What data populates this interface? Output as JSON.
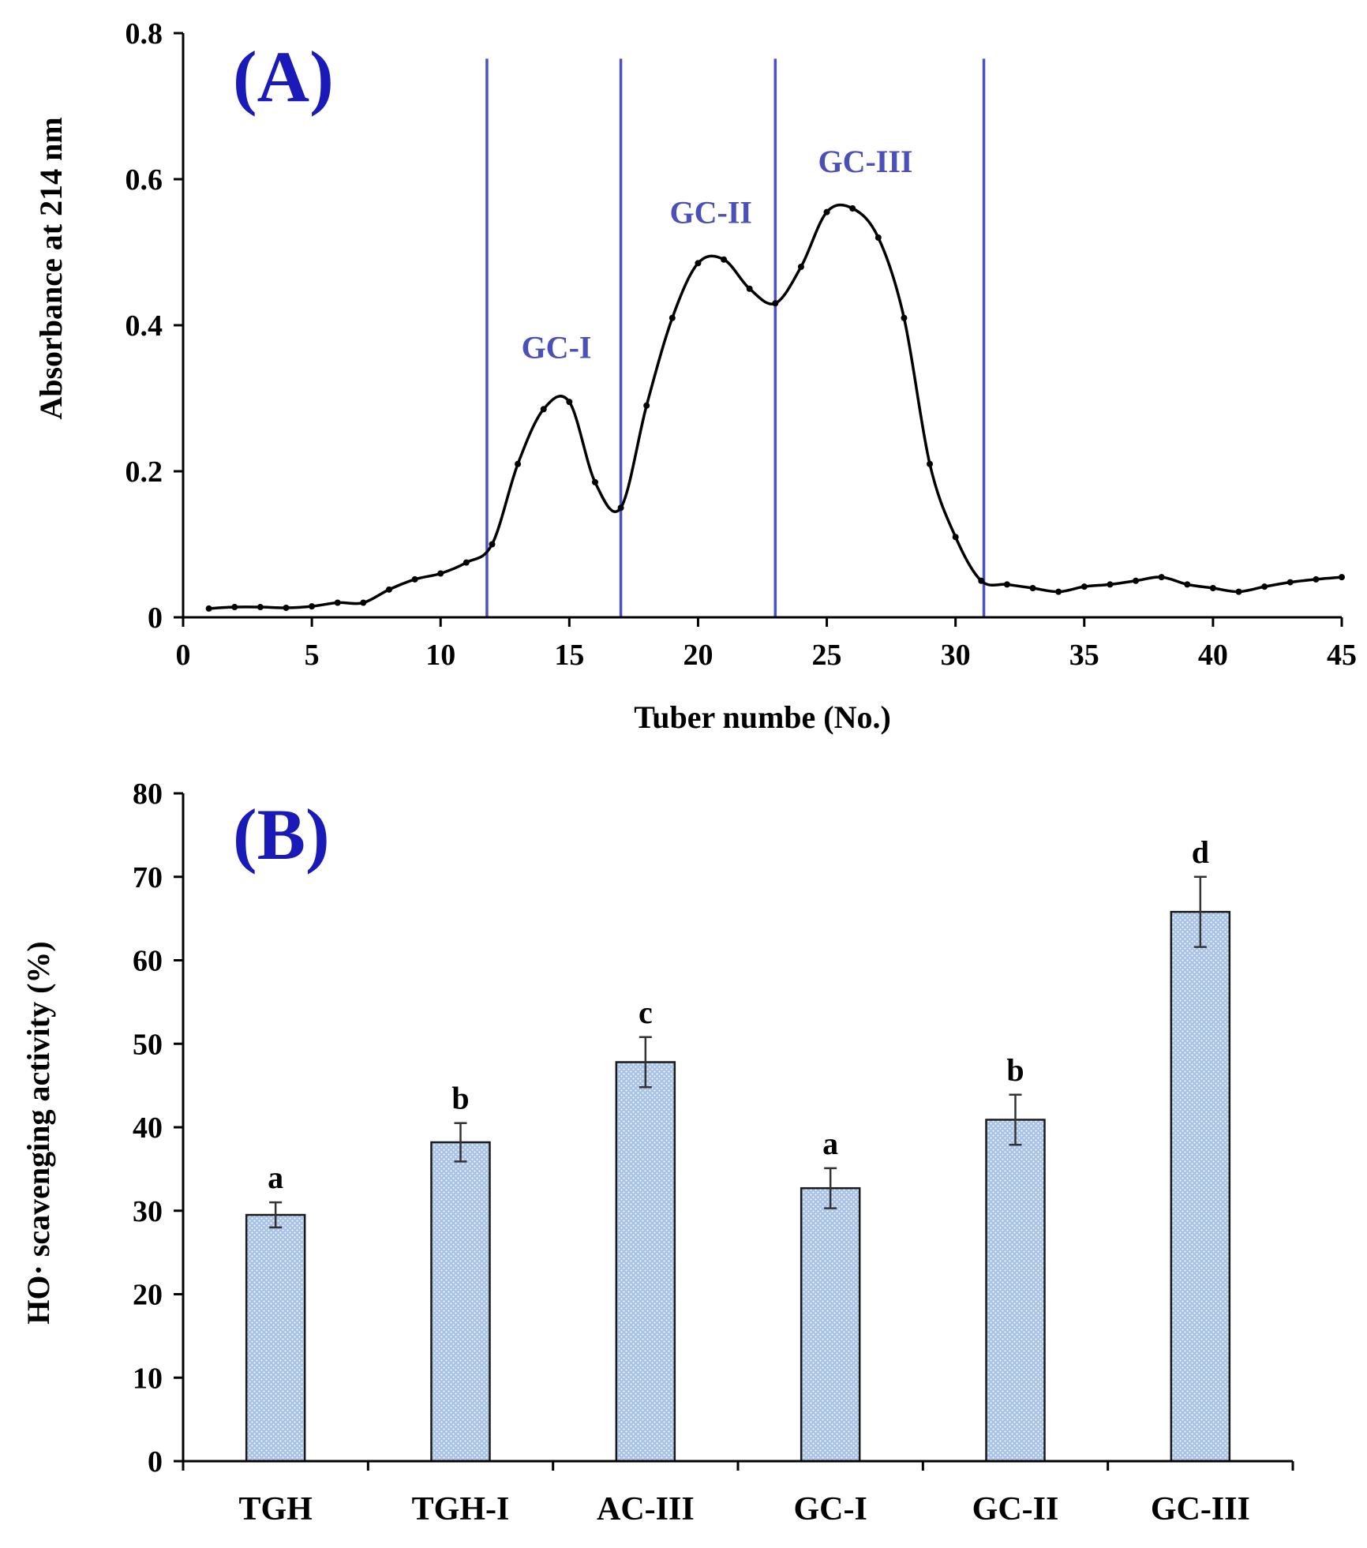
{
  "chart_data": [
    {
      "type": "line",
      "panel_label": "(A)",
      "xlabel": "Tuber numbe (No.)",
      "ylabel": "Absorbance at 214 nm",
      "xlim": [
        0,
        45
      ],
      "ylim": [
        0,
        0.8
      ],
      "xticks": [
        0,
        5,
        10,
        15,
        20,
        25,
        30,
        35,
        40,
        45
      ],
      "yticks": [
        0,
        0.2,
        0.4,
        0.6,
        0.8
      ],
      "ytick_labels": [
        "0",
        "0.2",
        "0.4",
        "0.6",
        "0.8"
      ],
      "grid": false,
      "x": [
        1,
        2,
        3,
        4,
        5,
        6,
        7,
        8,
        9,
        10,
        11,
        12,
        13,
        14,
        15,
        16,
        17,
        18,
        19,
        20,
        21,
        22,
        23,
        24,
        25,
        26,
        27,
        28,
        29,
        30,
        31,
        32,
        33,
        34,
        35,
        36,
        37,
        38,
        39,
        40,
        41,
        42,
        43,
        44,
        45
      ],
      "y": [
        0.012,
        0.014,
        0.014,
        0.013,
        0.015,
        0.02,
        0.02,
        0.038,
        0.052,
        0.06,
        0.075,
        0.1,
        0.21,
        0.285,
        0.295,
        0.185,
        0.15,
        0.29,
        0.41,
        0.485,
        0.49,
        0.45,
        0.43,
        0.48,
        0.555,
        0.56,
        0.52,
        0.41,
        0.21,
        0.11,
        0.05,
        0.045,
        0.04,
        0.035,
        0.042,
        0.045,
        0.05,
        0.055,
        0.045,
        0.04,
        0.035,
        0.042,
        0.048,
        0.052,
        0.055
      ],
      "region_boundaries": [
        11.8,
        17,
        23,
        31.1
      ],
      "regions": [
        {
          "label": "GC-I",
          "x": 14.5,
          "y": 0.355
        },
        {
          "label": "GC-II",
          "x": 20.5,
          "y": 0.54
        },
        {
          "label": "GC-III",
          "x": 26.5,
          "y": 0.61
        }
      ]
    },
    {
      "type": "bar",
      "panel_label": "(B)",
      "xlabel": "",
      "ylabel": "HO· scavenging activity (%)",
      "ylim": [
        0,
        80
      ],
      "yticks": [
        0,
        10,
        20,
        30,
        40,
        50,
        60,
        70,
        80
      ],
      "grid": false,
      "categories": [
        "TGH",
        "TGH-I",
        "AC-III",
        "GC-I",
        "GC-II",
        "GC-III"
      ],
      "values": [
        29.5,
        38.2,
        47.8,
        32.7,
        40.9,
        65.8
      ],
      "errors": [
        1.5,
        2.3,
        3.0,
        2.4,
        3.0,
        4.2
      ],
      "significance": [
        "a",
        "b",
        "c",
        "a",
        "b",
        "d"
      ]
    }
  ]
}
